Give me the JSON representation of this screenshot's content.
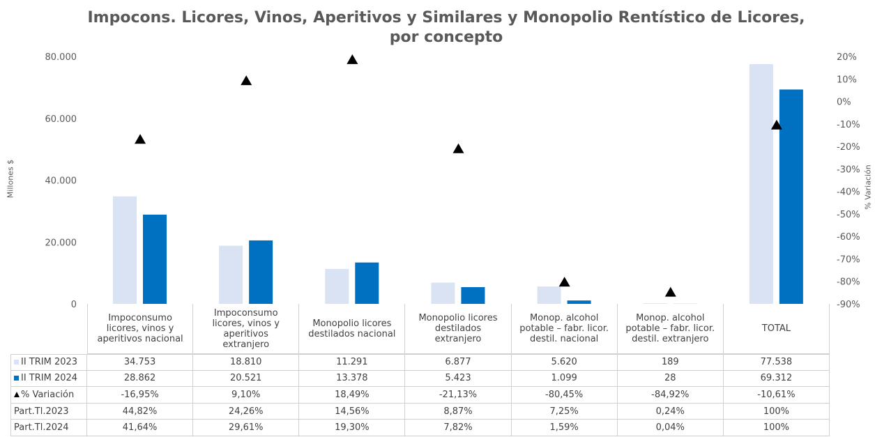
{
  "chart_data": {
    "type": "bar",
    "title": "Impocons. Licores, Vinos, Aperitivos y Similares y Monopolio Rentístico de Licores, por concepto",
    "y_label": "Millones $",
    "y2_label": "% Variación",
    "categories": [
      "Impoconsumo licores, vinos y aperitivos nacional",
      "Impoconsumo licores, vinos y aperitivos extranjero",
      "Monopolio licores destilados nacional",
      "Monopolio licores destilados extranjero",
      "Monop. alcohol potable – fabr. licor. destil. nacional",
      "Monop. alcohol potable – fabr. licor. destil. extranjero",
      "TOTAL"
    ],
    "series": [
      {
        "name": "II TRIM 2023",
        "color": "#dae3f3",
        "values": [
          34753,
          18810,
          11291,
          6877,
          5620,
          189,
          77538
        ],
        "value_labels": [
          "34.753",
          "18.810",
          "11.291",
          "6.877",
          "5.620",
          "189",
          "77.538"
        ]
      },
      {
        "name": "II TRIM 2024",
        "color": "#0070c0",
        "values": [
          28862,
          20521,
          13378,
          5423,
          1099,
          28,
          69312
        ],
        "value_labels": [
          "28.862",
          "20.521",
          "13.378",
          "5.423",
          "1.099",
          "28",
          "69.312"
        ]
      },
      {
        "name": "% Variación",
        "color": "#000000",
        "type": "scatter",
        "marker": "triangle",
        "axis": "y2",
        "values": [
          -16.95,
          9.1,
          18.49,
          -21.13,
          -80.45,
          -84.92,
          -10.61
        ],
        "value_labels": [
          "-16,95%",
          "9,10%",
          "18,49%",
          "-21,13%",
          "-80,45%",
          "-84,92%",
          "-10,61%"
        ]
      }
    ],
    "rows": [
      {
        "name": "Part.Tl.2023",
        "values": [
          "44,82%",
          "24,26%",
          "14,56%",
          "8,87%",
          "7,25%",
          "0,24%",
          "100%"
        ]
      },
      {
        "name": "Part.Tl.2024",
        "values": [
          "41,64%",
          "29,61%",
          "19,30%",
          "7,82%",
          "1,59%",
          "0,04%",
          "100%"
        ]
      }
    ],
    "ylim": [
      0,
      80000
    ],
    "yticks": [
      0,
      {
        "value": 20000,
        "label": "20.000"
      },
      {
        "value": 40000,
        "label": "40.000"
      },
      {
        "value": 60000,
        "label": "60.000"
      },
      {
        "value": 80000,
        "label": "80.000"
      }
    ],
    "y2lim": [
      -90,
      20
    ],
    "y2ticks": [
      {
        "value": -90,
        "label": "-90%"
      },
      {
        "value": -80,
        "label": "-80%"
      },
      {
        "value": -70,
        "label": "-70%"
      },
      {
        "value": -60,
        "label": "-60%"
      },
      {
        "value": -50,
        "label": "-50%"
      },
      {
        "value": -40,
        "label": "-40%"
      },
      {
        "value": -30,
        "label": "-30%"
      },
      {
        "value": -20,
        "label": "-20%"
      },
      {
        "value": -10,
        "label": "-10%"
      },
      {
        "value": 0,
        "label": "0%"
      },
      {
        "value": 10,
        "label": "10%"
      },
      {
        "value": 20,
        "label": "20%"
      }
    ],
    "grid": false
  }
}
